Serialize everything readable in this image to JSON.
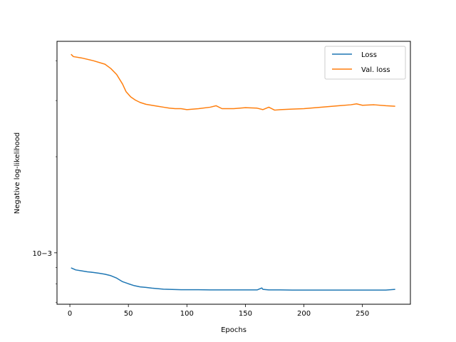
{
  "chart_data": {
    "type": "line",
    "title": "",
    "xlabel": "Epochs",
    "ylabel": "Negative log-likelihood",
    "yscale": "log",
    "xlim": [
      -11,
      291
    ],
    "ylim": [
      0.00069,
      0.0046
    ],
    "xticks": [
      0,
      50,
      100,
      150,
      200,
      250
    ],
    "xtick_labels": [
      "0",
      "50",
      "100",
      "150",
      "200",
      "250"
    ],
    "yticks": [
      0.001
    ],
    "ytick_labels": [
      "10−3"
    ],
    "grid": false,
    "legend": {
      "placement": "top-right"
    },
    "series": [
      {
        "name": "Loss",
        "color": "#1f77b4",
        "x": [
          1,
          5,
          10,
          15,
          20,
          25,
          30,
          35,
          40,
          45,
          50,
          55,
          60,
          65,
          70,
          75,
          80,
          85,
          90,
          95,
          100,
          110,
          120,
          130,
          140,
          150,
          160,
          164,
          165,
          170,
          180,
          190,
          200,
          210,
          220,
          230,
          240,
          250,
          260,
          270,
          278
        ],
        "y": [
          0.000897,
          0.000884,
          0.000878,
          0.000872,
          0.000868,
          0.000863,
          0.000857,
          0.000848,
          0.000833,
          0.000812,
          0.0008,
          0.000789,
          0.000782,
          0.000779,
          0.000775,
          0.000772,
          0.000769,
          0.000768,
          0.000767,
          0.000766,
          0.000766,
          0.000766,
          0.000765,
          0.000765,
          0.000765,
          0.000765,
          0.000765,
          0.000776,
          0.000768,
          0.000765,
          0.000765,
          0.000764,
          0.000764,
          0.000764,
          0.000764,
          0.000764,
          0.000764,
          0.000764,
          0.000764,
          0.000764,
          0.000768
        ]
      },
      {
        "name": "Val. loss",
        "color": "#ff7f0e",
        "x": [
          1,
          3,
          10,
          20,
          30,
          35,
          40,
          45,
          48,
          52,
          56,
          60,
          65,
          70,
          75,
          80,
          85,
          90,
          95,
          100,
          110,
          120,
          125,
          130,
          140,
          150,
          160,
          165,
          170,
          175,
          180,
          190,
          200,
          210,
          220,
          230,
          240,
          245,
          250,
          260,
          270,
          278
        ],
        "y": [
          0.00419,
          0.00412,
          0.00408,
          0.004,
          0.0039,
          0.00378,
          0.00362,
          0.00338,
          0.0032,
          0.00308,
          0.00301,
          0.00296,
          0.00292,
          0.0029,
          0.00288,
          0.00286,
          0.00284,
          0.00283,
          0.00283,
          0.00281,
          0.00283,
          0.00286,
          0.00289,
          0.00283,
          0.00283,
          0.00285,
          0.00284,
          0.00281,
          0.00286,
          0.0028,
          0.00281,
          0.00282,
          0.00283,
          0.00285,
          0.00287,
          0.00289,
          0.00291,
          0.00293,
          0.0029,
          0.00291,
          0.00289,
          0.00288
        ]
      }
    ]
  }
}
